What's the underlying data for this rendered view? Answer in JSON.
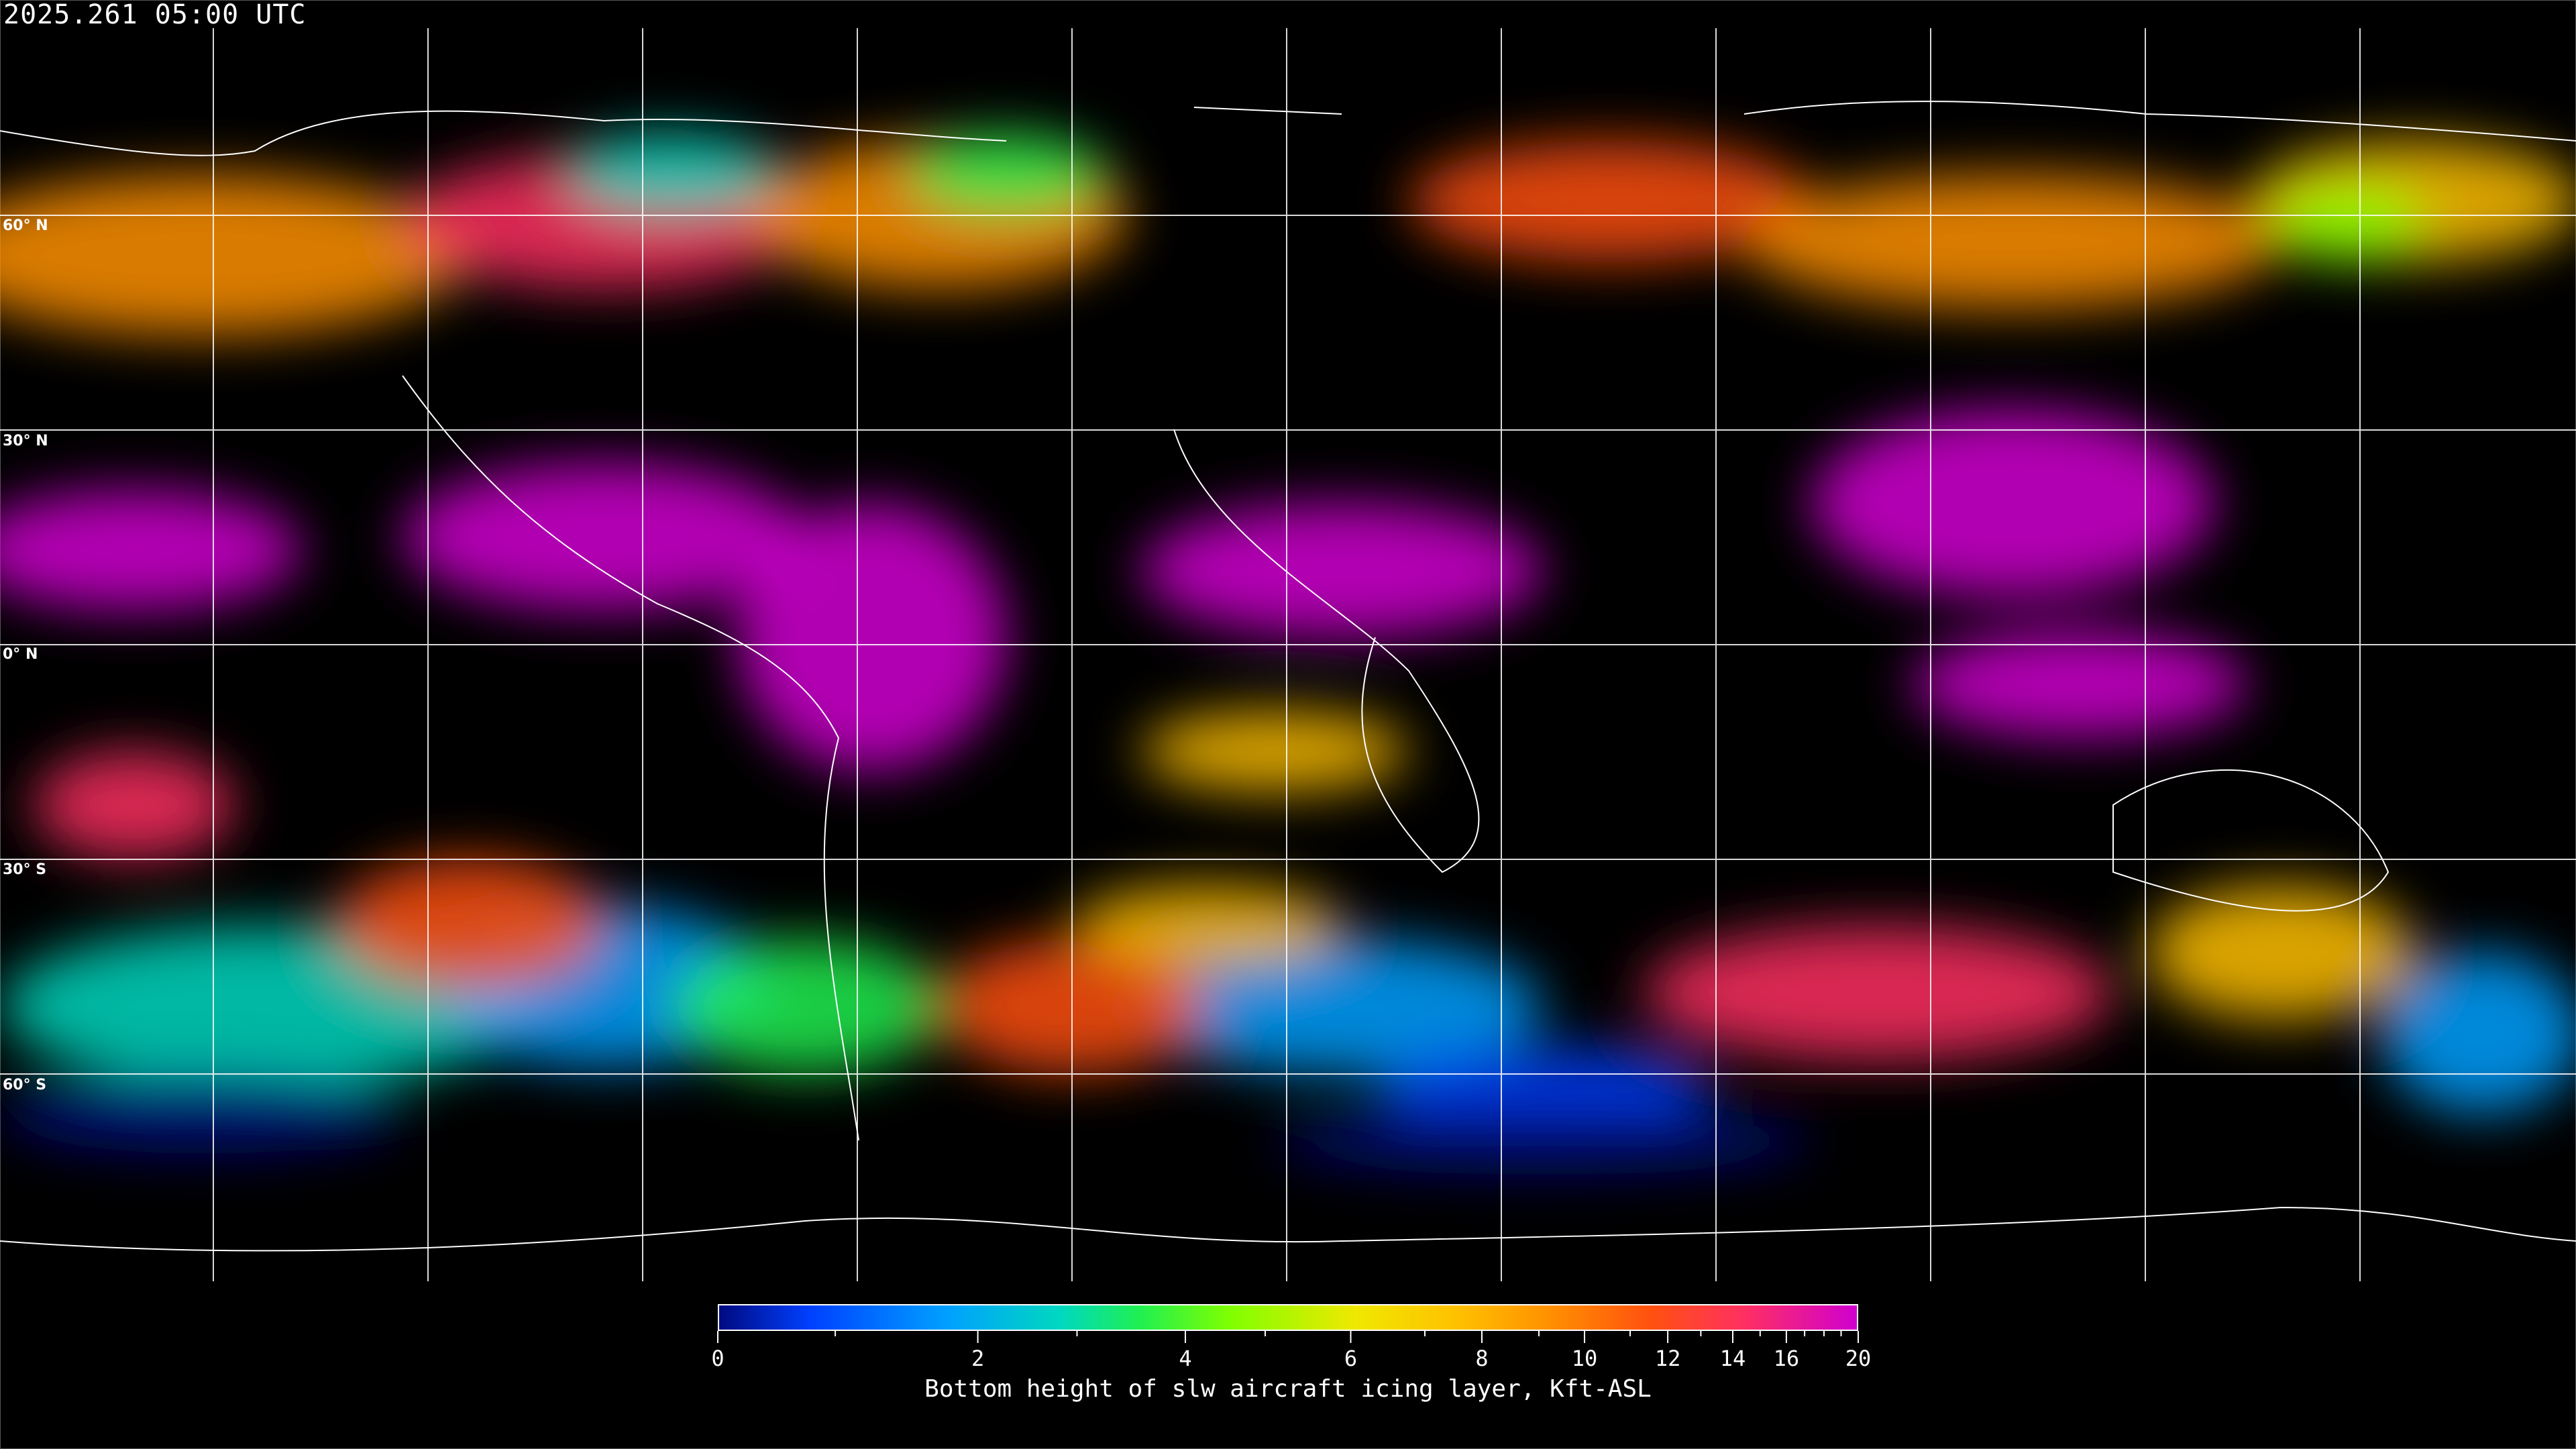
{
  "header": {
    "timestamp": "2025.261 05:00 UTC"
  },
  "map": {
    "projection": "equirectangular",
    "grid_spacing_deg": 30,
    "lat_labels": [
      "60° N",
      "30° N",
      "0° N",
      "30° S",
      "60° S"
    ],
    "grid_color": "#ffffff",
    "coastline_color": "#ffffff"
  },
  "colorbar": {
    "label": "Bottom height of slw aircraft icing layer, Kft-ASL",
    "ticks": [
      "0",
      "2",
      "4",
      "6",
      "8",
      "10",
      "12",
      "14",
      "16",
      "20"
    ],
    "range": [
      0,
      20
    ],
    "colors": [
      "#000a80",
      "#0040ff",
      "#00a0ff",
      "#00d8c0",
      "#20f050",
      "#80ff00",
      "#f0e800",
      "#ffc000",
      "#ff9000",
      "#ff5010",
      "#ff3060",
      "#d000d0"
    ]
  }
}
